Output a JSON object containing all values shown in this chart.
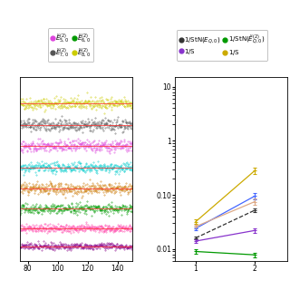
{
  "left_plot": {
    "x_range": [
      75,
      150
    ],
    "x_ticks": [
      80,
      100,
      120,
      140
    ],
    "lines": [
      {
        "color": "#cccc00",
        "y_base": 0.9,
        "noise": 0.018
      },
      {
        "color": "#555555",
        "y_base": 0.77,
        "noise": 0.018
      },
      {
        "color": "#dd44dd",
        "y_base": 0.64,
        "noise": 0.018
      },
      {
        "color": "#00cccc",
        "y_base": 0.51,
        "noise": 0.015
      },
      {
        "color": "#cc7700",
        "y_base": 0.38,
        "noise": 0.018
      },
      {
        "color": "#009900",
        "y_base": 0.26,
        "noise": 0.015
      },
      {
        "color": "#ff44aa",
        "y_base": 0.14,
        "noise": 0.012
      },
      {
        "color": "#880088",
        "y_base": 0.03,
        "noise": 0.01
      }
    ],
    "ref_line_color": "#ff3333",
    "legend_left": [
      {
        "label": "$\\tilde{E}^{(2)}_{5,0}$",
        "color": "#dd44dd"
      },
      {
        "label": "$\\tilde{E}^{(2)}_{7,0}$",
        "color": "#555555"
      },
      {
        "label": "$\\tilde{E}^{(2)}_{6,0}$",
        "color": "#009900"
      },
      {
        "label": "$\\tilde{E}^{(2)}_{8,0}$",
        "color": "#cccc00"
      }
    ]
  },
  "right_plot": {
    "x_values": [
      1,
      2
    ],
    "x_ticks": [
      1,
      2
    ],
    "ylim_log": [
      -2.3,
      1.3
    ],
    "lines": [
      {
        "color": "#333333",
        "linestyle": "dashed",
        "y_values": [
          0.016,
          0.052
        ],
        "yerr": [
          0.001,
          0.004
        ]
      },
      {
        "color": "#8833cc",
        "linestyle": "solid",
        "y_values": [
          0.014,
          0.022
        ],
        "yerr": [
          0.001,
          0.002
        ]
      },
      {
        "color": "#009900",
        "linestyle": "solid",
        "y_values": [
          0.009,
          0.0078
        ],
        "yerr": [
          0.0008,
          0.0008
        ]
      },
      {
        "color": "#ccaa00",
        "linestyle": "solid",
        "y_values": [
          0.032,
          0.28
        ],
        "yerr": [
          0.003,
          0.035
        ]
      },
      {
        "color": "#4466ff",
        "linestyle": "solid",
        "y_values": [
          0.024,
          0.095
        ],
        "yerr": [
          0.002,
          0.012
        ]
      },
      {
        "color": "#ddaa88",
        "linestyle": "solid",
        "y_values": [
          0.026,
          0.075
        ],
        "yerr": [
          0.002,
          0.01
        ]
      }
    ],
    "legend_right": [
      {
        "label": "$1/\\mathrm{StN}(E_{Q,0})$",
        "color": "#333333"
      },
      {
        "label": "$1/\\mathrm{S}$",
        "color": "#8833cc"
      },
      {
        "label": "$1/\\mathrm{StN}(\\tilde{E}^{(2)}_{Q,0})$",
        "color": "#009900"
      },
      {
        "label": "$1/\\mathrm{S}$",
        "color": "#ccaa00"
      }
    ]
  },
  "background_color": "#ffffff",
  "fig_width": 3.2,
  "fig_height": 3.2,
  "dpi": 100
}
